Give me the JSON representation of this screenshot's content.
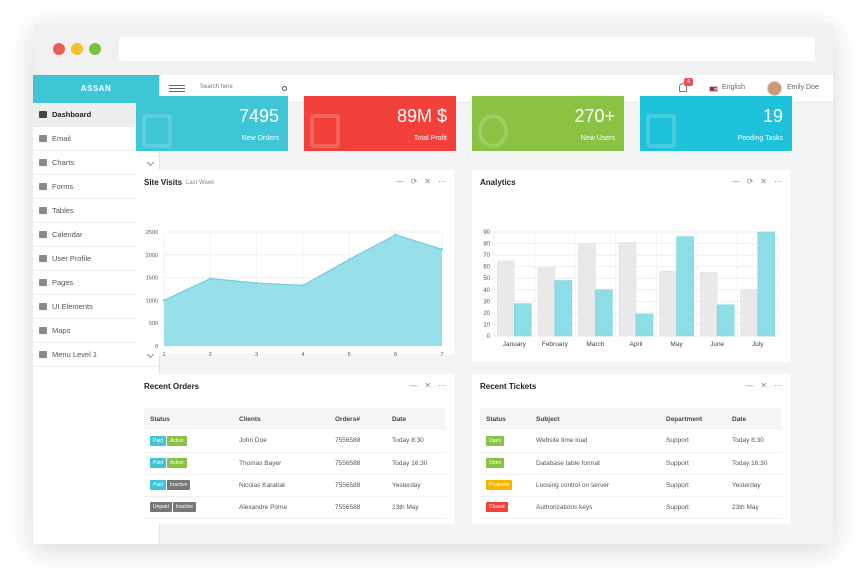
{
  "brand": "ASSAN",
  "sidebar": {
    "items": [
      {
        "label": "Dashboard",
        "icon": "home-icon",
        "active": true,
        "chevron": false
      },
      {
        "label": "Email",
        "icon": "envelope-icon",
        "active": false,
        "chevron": true
      },
      {
        "label": "Charts",
        "icon": "bar-chart-icon",
        "active": false,
        "chevron": true
      },
      {
        "label": "Forms",
        "icon": "forms-icon",
        "active": false,
        "chevron": true
      },
      {
        "label": "Tables",
        "icon": "table-icon",
        "active": false,
        "chevron": true
      },
      {
        "label": "Calendar",
        "icon": "calendar-icon",
        "active": false,
        "chevron": false
      },
      {
        "label": "User Profile",
        "icon": "user-icon",
        "active": false,
        "chevron": false
      },
      {
        "label": "Pages",
        "icon": "pages-icon",
        "active": false,
        "chevron": true
      },
      {
        "label": "UI Elements",
        "icon": "cogs-icon",
        "active": false,
        "chevron": true
      },
      {
        "label": "Maps",
        "icon": "map-icon",
        "active": false,
        "chevron": true
      },
      {
        "label": "Menu Level 1",
        "icon": "menu-icon",
        "active": false,
        "chevron": true
      }
    ]
  },
  "topbar": {
    "search_placeholder": "Search here",
    "notifications": "4",
    "language": "English",
    "user": "Emily Doe"
  },
  "stats": [
    {
      "value": "7495",
      "label": "New Orders",
      "color": "#3ec5d6",
      "icon": "shopping-bag-icon"
    },
    {
      "value": "89M $",
      "label": "Total Profit",
      "color": "#f1413a",
      "icon": "dollar-icon"
    },
    {
      "value": "270+",
      "label": "New Users",
      "color": "#8ac243",
      "icon": "users-icon"
    },
    {
      "value": "19",
      "label": "Pending Tasks",
      "color": "#1ec2da",
      "icon": "bar-chart-icon"
    }
  ],
  "site_visits": {
    "title": "Site Visits",
    "subtitle": "Last Week"
  },
  "analytics": {
    "title": "Analytics"
  },
  "chart_data": [
    {
      "type": "area",
      "title": "Site Visits",
      "subtitle": "Last Week",
      "x": [
        1,
        2,
        3,
        4,
        5,
        6,
        7
      ],
      "values": [
        1000,
        1480,
        1380,
        1330,
        1900,
        2440,
        2120
      ],
      "yticks": [
        0,
        500,
        1000,
        1500,
        2000,
        2500
      ],
      "ylim": [
        0,
        2500
      ],
      "color": "#8ddde7",
      "grid": true
    },
    {
      "type": "bar",
      "title": "Analytics",
      "categories": [
        "January",
        "February",
        "March",
        "April",
        "May",
        "June",
        "July"
      ],
      "series": [
        {
          "values": [
            65,
            59,
            80,
            81,
            56,
            55,
            40
          ],
          "color": "#e9e9e9"
        },
        {
          "values": [
            28,
            48,
            40,
            19,
            86,
            27,
            90
          ],
          "color": "#8ddde7"
        }
      ],
      "yticks": [
        0,
        10,
        20,
        30,
        40,
        50,
        60,
        70,
        80,
        90
      ],
      "ylim": [
        0,
        90
      ],
      "grid": true
    }
  ],
  "orders": {
    "title": "Recent Orders",
    "columns": [
      "Status",
      "Clients",
      "Orders#",
      "Date"
    ],
    "rows": [
      {
        "status": [
          "Paid",
          "Active"
        ],
        "client": "John Doe",
        "order": "7556588",
        "date": "Today 8:30"
      },
      {
        "status": [
          "Paid",
          "Active"
        ],
        "client": "Thomas Bayer",
        "order": "7556588",
        "date": "Today 16:30"
      },
      {
        "status": [
          "Paid",
          "Inactive"
        ],
        "client": "Nicolas Karabat",
        "order": "7556588",
        "date": "Yesterday"
      },
      {
        "status": [
          "Unpaid",
          "Inactive"
        ],
        "client": "Alexandre Pome",
        "order": "7556588",
        "date": "23th May"
      }
    ]
  },
  "tickets": {
    "title": "Recent Tickets",
    "columns": [
      "Status",
      "Subject",
      "Department",
      "Date"
    ],
    "rows": [
      {
        "status": "Open",
        "subject": "Website time load",
        "department": "Support",
        "date": "Today 8:30"
      },
      {
        "status": "Open",
        "subject": "Database table format",
        "department": "Support",
        "date": "Today 16:30"
      },
      {
        "status": "Progress",
        "subject": "Loosing control on server",
        "department": "Support",
        "date": "Yesterday"
      },
      {
        "status": "Closed",
        "subject": "Authorizations keys",
        "department": "Support",
        "date": "23th May"
      }
    ]
  }
}
